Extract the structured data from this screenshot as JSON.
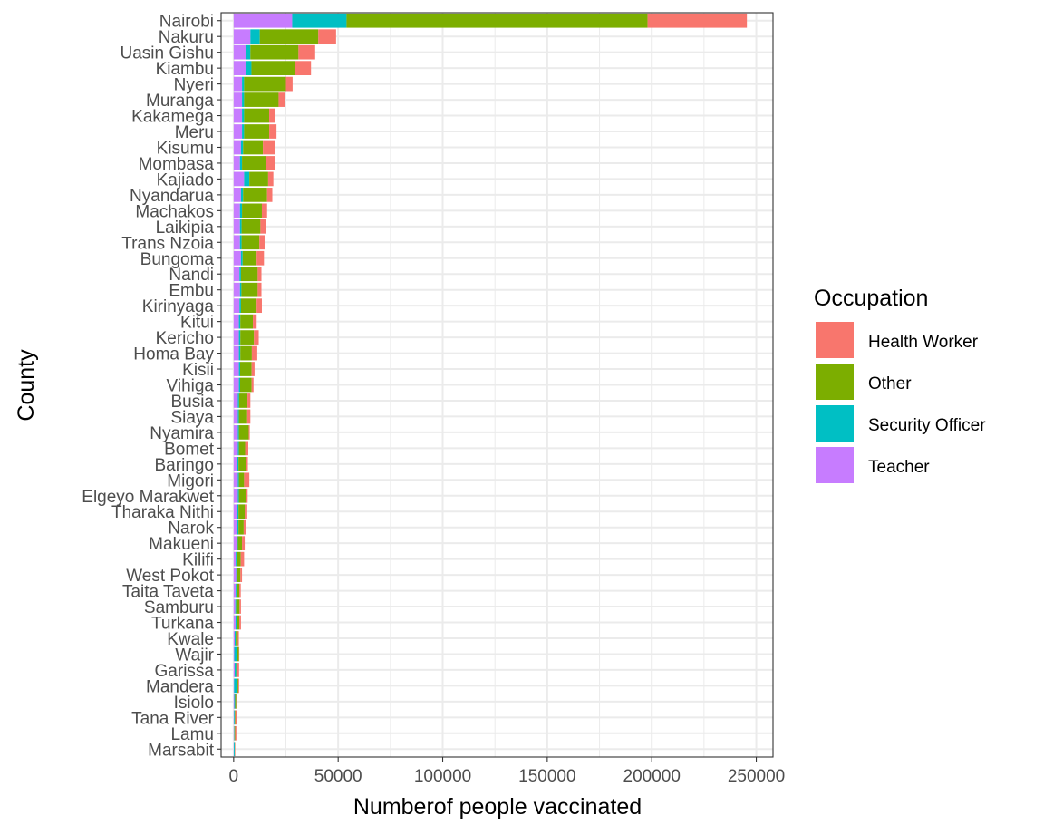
{
  "chart_data": {
    "type": "bar",
    "orientation": "horizontal",
    "stacked": true,
    "xlabel": "Numberof people vaccinated",
    "ylabel": "County",
    "xlim": [
      -6000,
      258000
    ],
    "xticks": [
      0,
      50000,
      100000,
      150000,
      200000,
      250000
    ],
    "xtick_labels": [
      "0",
      "50000",
      "100000",
      "150000",
      "200000",
      "250000"
    ],
    "grid": true,
    "legend": {
      "title": "Occupation",
      "position": "right",
      "entries": [
        "Health Worker",
        "Other",
        "Security Officer",
        "Teacher"
      ]
    },
    "categories": [
      "Nairobi",
      "Nakuru",
      "Uasin Gishu",
      "Kiambu",
      "Nyeri",
      "Muranga",
      "Kakamega",
      "Meru",
      "Kisumu",
      "Mombasa",
      "Kajiado",
      "Nyandarua",
      "Machakos",
      "Laikipia",
      "Trans Nzoia",
      "Bungoma",
      "Nandi",
      "Embu",
      "Kirinyaga",
      "Kitui",
      "Kericho",
      "Homa Bay",
      "Kisii",
      "Vihiga",
      "Busia",
      "Siaya",
      "Nyamira",
      "Bomet",
      "Baringo",
      "Migori",
      "Elgeyo Marakwet",
      "Tharaka Nithi",
      "Narok",
      "Makueni",
      "Kilifi",
      "West Pokot",
      "Taita Taveta",
      "Samburu",
      "Turkana",
      "Kwale",
      "Wajir",
      "Garissa",
      "Mandera",
      "Isiolo",
      "Tana River",
      "Lamu",
      "Marsabit"
    ],
    "series": [
      {
        "name": "Teacher",
        "color": "#C77CFF",
        "values": [
          28000,
          8000,
          6000,
          6000,
          4000,
          4000,
          4000,
          4000,
          3500,
          3000,
          5000,
          3500,
          3000,
          3000,
          3000,
          3500,
          2800,
          3000,
          2800,
          2500,
          2500,
          2500,
          2500,
          2500,
          2000,
          2000,
          2000,
          2000,
          1800,
          2000,
          2000,
          1800,
          1800,
          1500,
          1000,
          1200,
          1000,
          800,
          900,
          500,
          300,
          500,
          200,
          300,
          200,
          200,
          100
        ]
      },
      {
        "name": "Security Officer",
        "color": "#00BFC4",
        "values": [
          26000,
          4500,
          2000,
          2500,
          1000,
          1000,
          1000,
          1000,
          1000,
          1000,
          2500,
          1000,
          1000,
          800,
          800,
          800,
          700,
          700,
          700,
          700,
          700,
          700,
          600,
          600,
          600,
          500,
          500,
          500,
          500,
          500,
          500,
          500,
          500,
          500,
          400,
          400,
          400,
          400,
          500,
          500,
          1200,
          700,
          1200,
          400,
          300,
          200,
          400
        ]
      },
      {
        "name": "Other",
        "color": "#7CAE00",
        "values": [
          144000,
          28000,
          23000,
          21000,
          20000,
          16500,
          12000,
          12000,
          9500,
          11500,
          9000,
          11500,
          9500,
          9000,
          8500,
          6700,
          8000,
          7800,
          7500,
          6000,
          6500,
          5500,
          5500,
          5500,
          4000,
          4000,
          4700,
          3000,
          3500,
          2500,
          3200,
          3000,
          2500,
          2000,
          2000,
          1600,
          1300,
          1600,
          1300,
          1000,
          1000,
          600,
          800,
          500,
          300,
          300,
          100
        ]
      },
      {
        "name": "Health Worker",
        "color": "#F8766D",
        "values": [
          47500,
          8500,
          8000,
          7500,
          3200,
          3000,
          3000,
          3500,
          6000,
          4500,
          2500,
          2500,
          2500,
          2500,
          2500,
          3500,
          1800,
          1800,
          2500,
          1800,
          2300,
          2600,
          1400,
          900,
          1400,
          1500,
          500,
          1500,
          1000,
          2500,
          1000,
          1200,
          1200,
          1300,
          1600,
          800,
          700,
          700,
          800,
          500,
          200,
          800,
          400,
          500,
          600,
          600,
          200
        ]
      }
    ]
  }
}
